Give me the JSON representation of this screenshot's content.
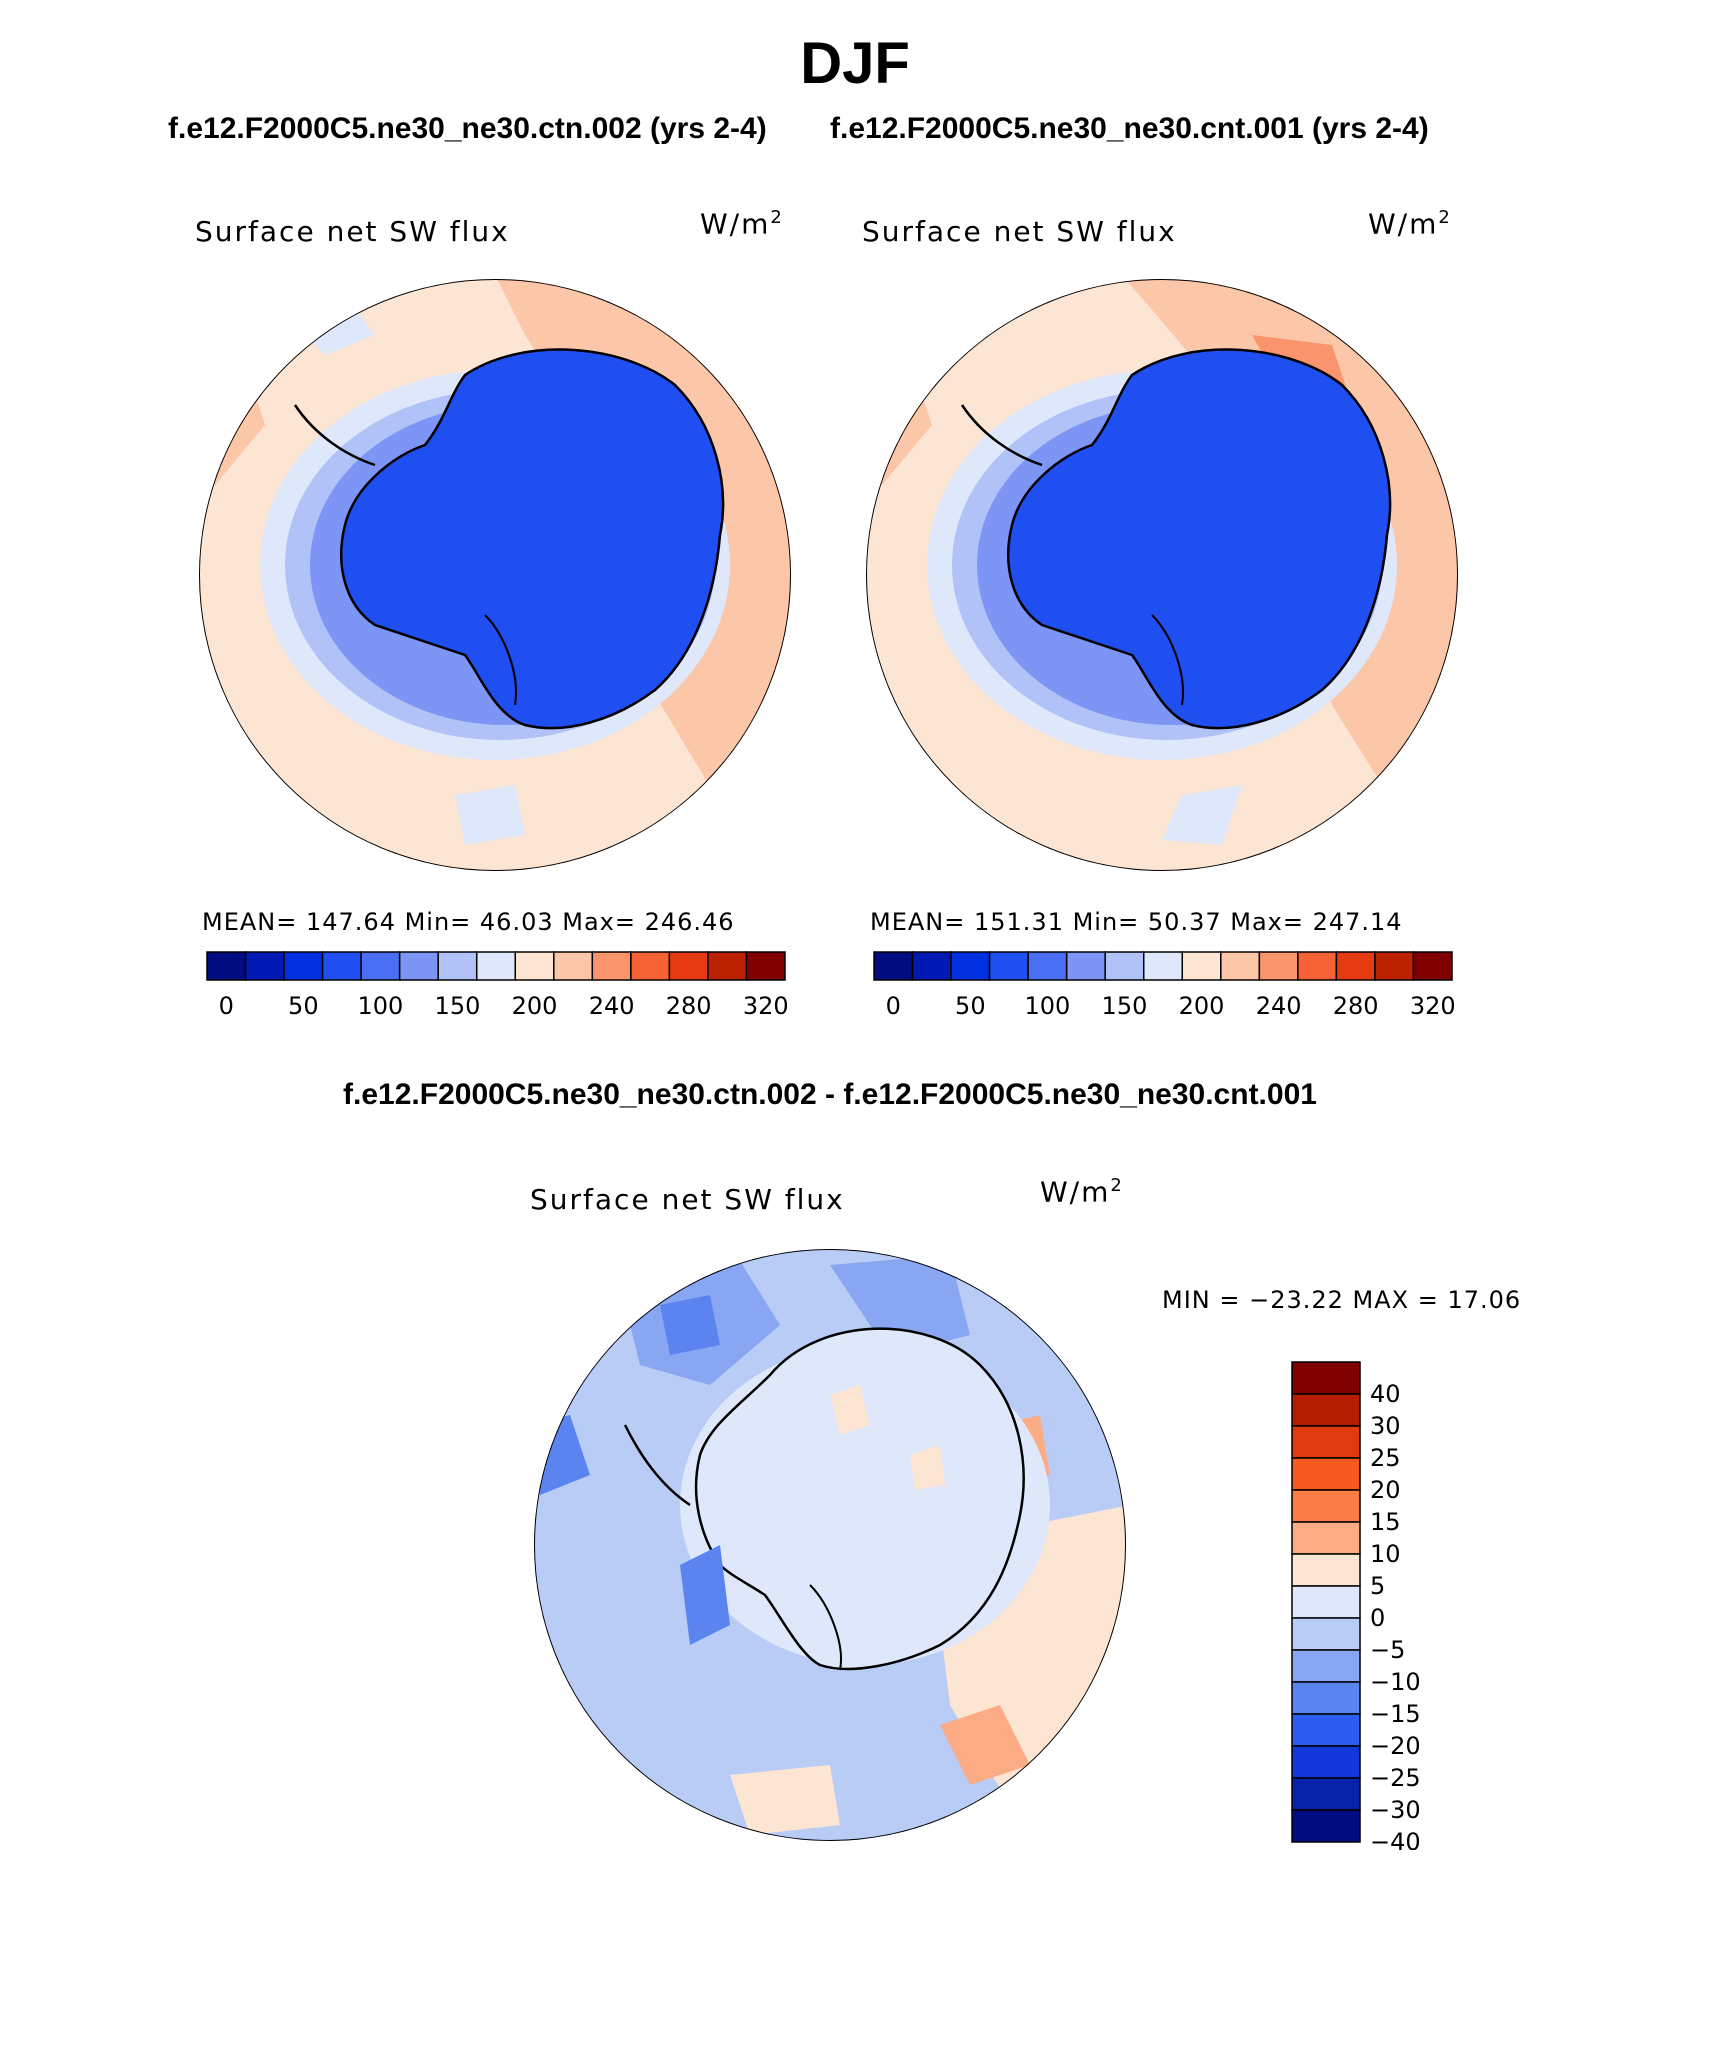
{
  "season": "DJF",
  "case1_title": "f.e12.F2000C5.ne30_ne30.ctn.002 (yrs 2-4)",
  "case2_title": "f.e12.F2000C5.ne30_ne30.cnt.001 (yrs 2-4)",
  "diff_title": "f.e12.F2000C5.ne30_ne30.ctn.002 - f.e12.F2000C5.ne30_ne30.cnt.001",
  "panels": [
    {
      "variable": "Surface net SW flux",
      "units_base": "W/m",
      "units_exp": "2",
      "stats": "MEAN= 147.64   Min=  46.03   Max= 246.46"
    },
    {
      "variable": "Surface net SW flux",
      "units_base": "W/m",
      "units_exp": "2",
      "stats": "MEAN= 151.31   Min=  50.37   Max= 247.14"
    }
  ],
  "diff_panel": {
    "variable": "Surface net SW flux",
    "units_base": "W/m",
    "units_exp": "2",
    "minmax": "MIN = −23.22 MAX =  17.06"
  },
  "abs_colorbar": {
    "colors": [
      "#000c80",
      "#0019b3",
      "#0030e0",
      "#1f4ff0",
      "#4a6ff5",
      "#7d95f5",
      "#b0c2f7",
      "#dfe8fb",
      "#fde5d4",
      "#fcc6a8",
      "#f9946c",
      "#f76136",
      "#e63a12",
      "#bb2200",
      "#7f0000"
    ],
    "labels": [
      "0",
      "50",
      "100",
      "150",
      "200",
      "240",
      "280",
      "320"
    ]
  },
  "diff_colorbar": {
    "colors": [
      "#7f0000",
      "#b51d00",
      "#e03b0e",
      "#f75a20",
      "#fa7d48",
      "#fcac84",
      "#fde5d4",
      "#dfe8fb",
      "#b8ccf6",
      "#89a6f3",
      "#5c84f0",
      "#2e5cee",
      "#1238d9",
      "#0522a8",
      "#000c80"
    ],
    "labels": [
      "40",
      "30",
      "25",
      "20",
      "15",
      "10",
      "5",
      "0",
      "−5",
      "−10",
      "−15",
      "−20",
      "−25",
      "−30",
      "−40"
    ]
  },
  "colors": {
    "ocean_absolute": "#fde5d4",
    "continent_absolute": "#1f4ff0",
    "diff_background": "#b8ccf6"
  }
}
